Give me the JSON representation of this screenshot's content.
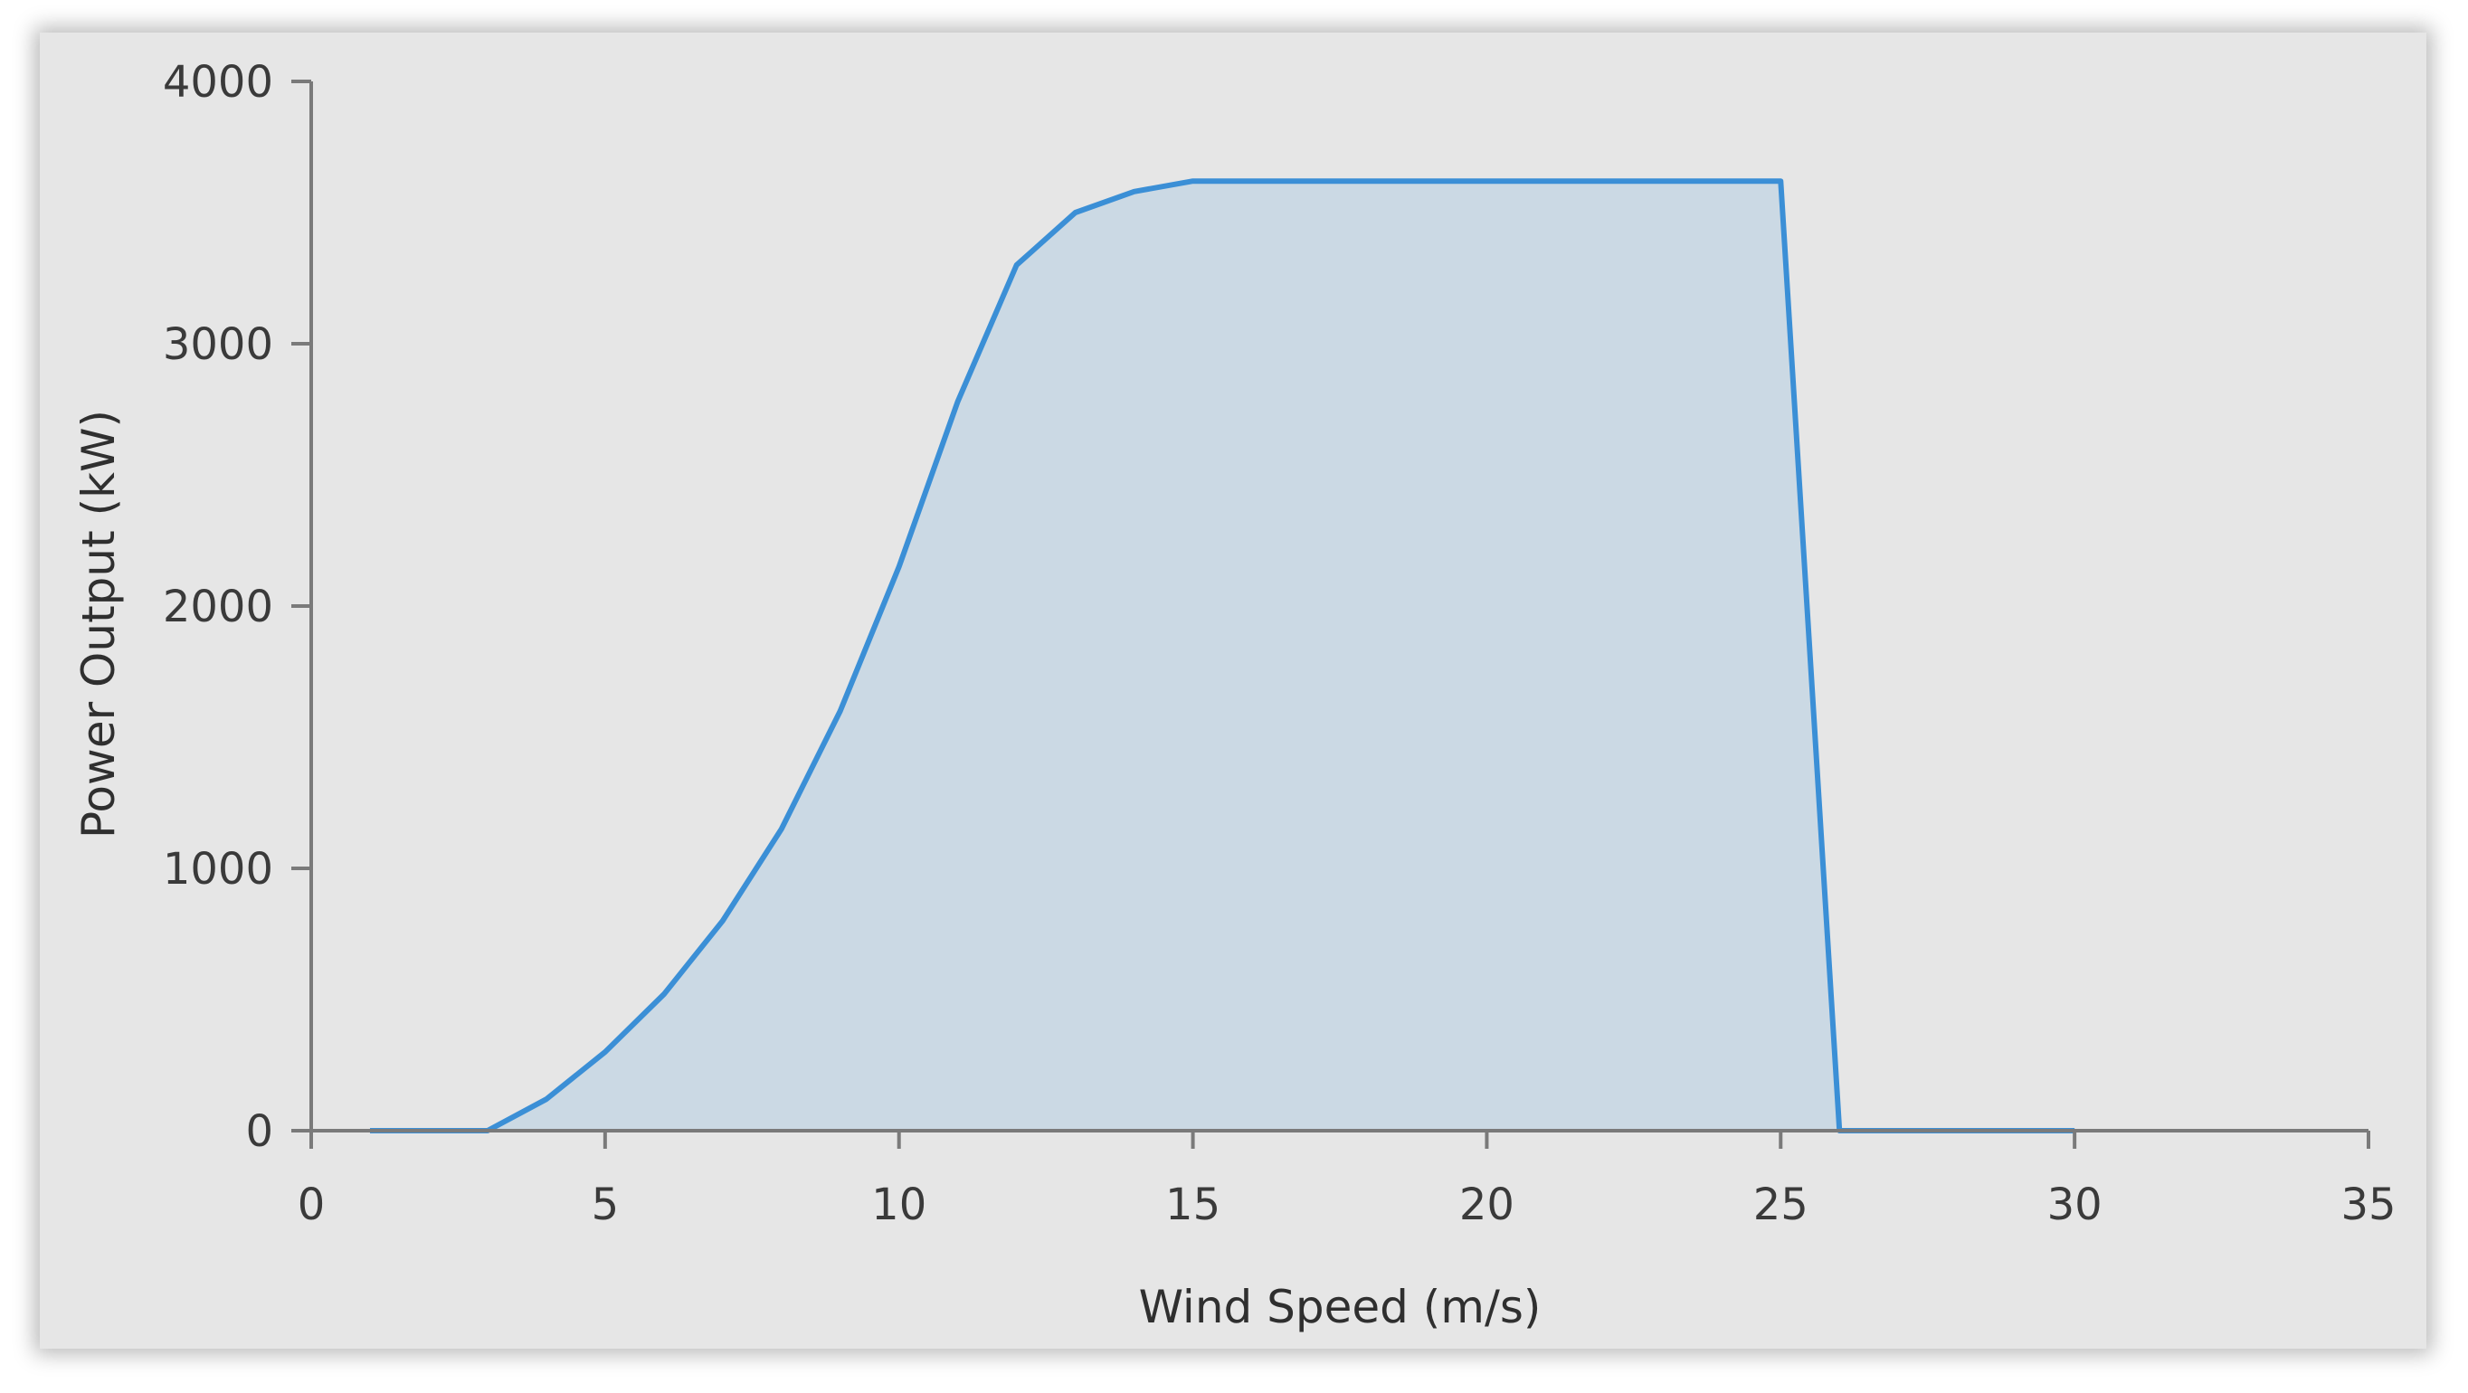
{
  "chart_data": {
    "type": "area",
    "title": "",
    "xlabel": "Wind Speed (m/s)",
    "ylabel": "Power Output (kW)",
    "xlim": [
      0,
      35
    ],
    "ylim": [
      0,
      4000
    ],
    "x_ticks": [
      0,
      5,
      10,
      15,
      20,
      25,
      30,
      35
    ],
    "y_ticks": [
      0,
      1000,
      2000,
      3000,
      4000
    ],
    "grid": false,
    "legend": "none",
    "colors": {
      "line": "#3b8fd6",
      "fill": "#cbd9e4",
      "axis": "#7a7a7a",
      "background": "#e6e6e6"
    },
    "series": [
      {
        "x": [
          1,
          2,
          3,
          4,
          5,
          6,
          7,
          8,
          9,
          10,
          11,
          12,
          13,
          14,
          15,
          16,
          17,
          18,
          19,
          20,
          21,
          22,
          23,
          24,
          25,
          26,
          27,
          28,
          29,
          30
        ],
        "y": [
          0,
          0,
          0,
          120,
          300,
          520,
          800,
          1150,
          1600,
          2150,
          2780,
          3300,
          3500,
          3580,
          3620,
          3620,
          3620,
          3620,
          3620,
          3620,
          3620,
          3620,
          3620,
          3620,
          3620,
          0,
          0,
          0,
          0,
          0
        ]
      }
    ]
  }
}
